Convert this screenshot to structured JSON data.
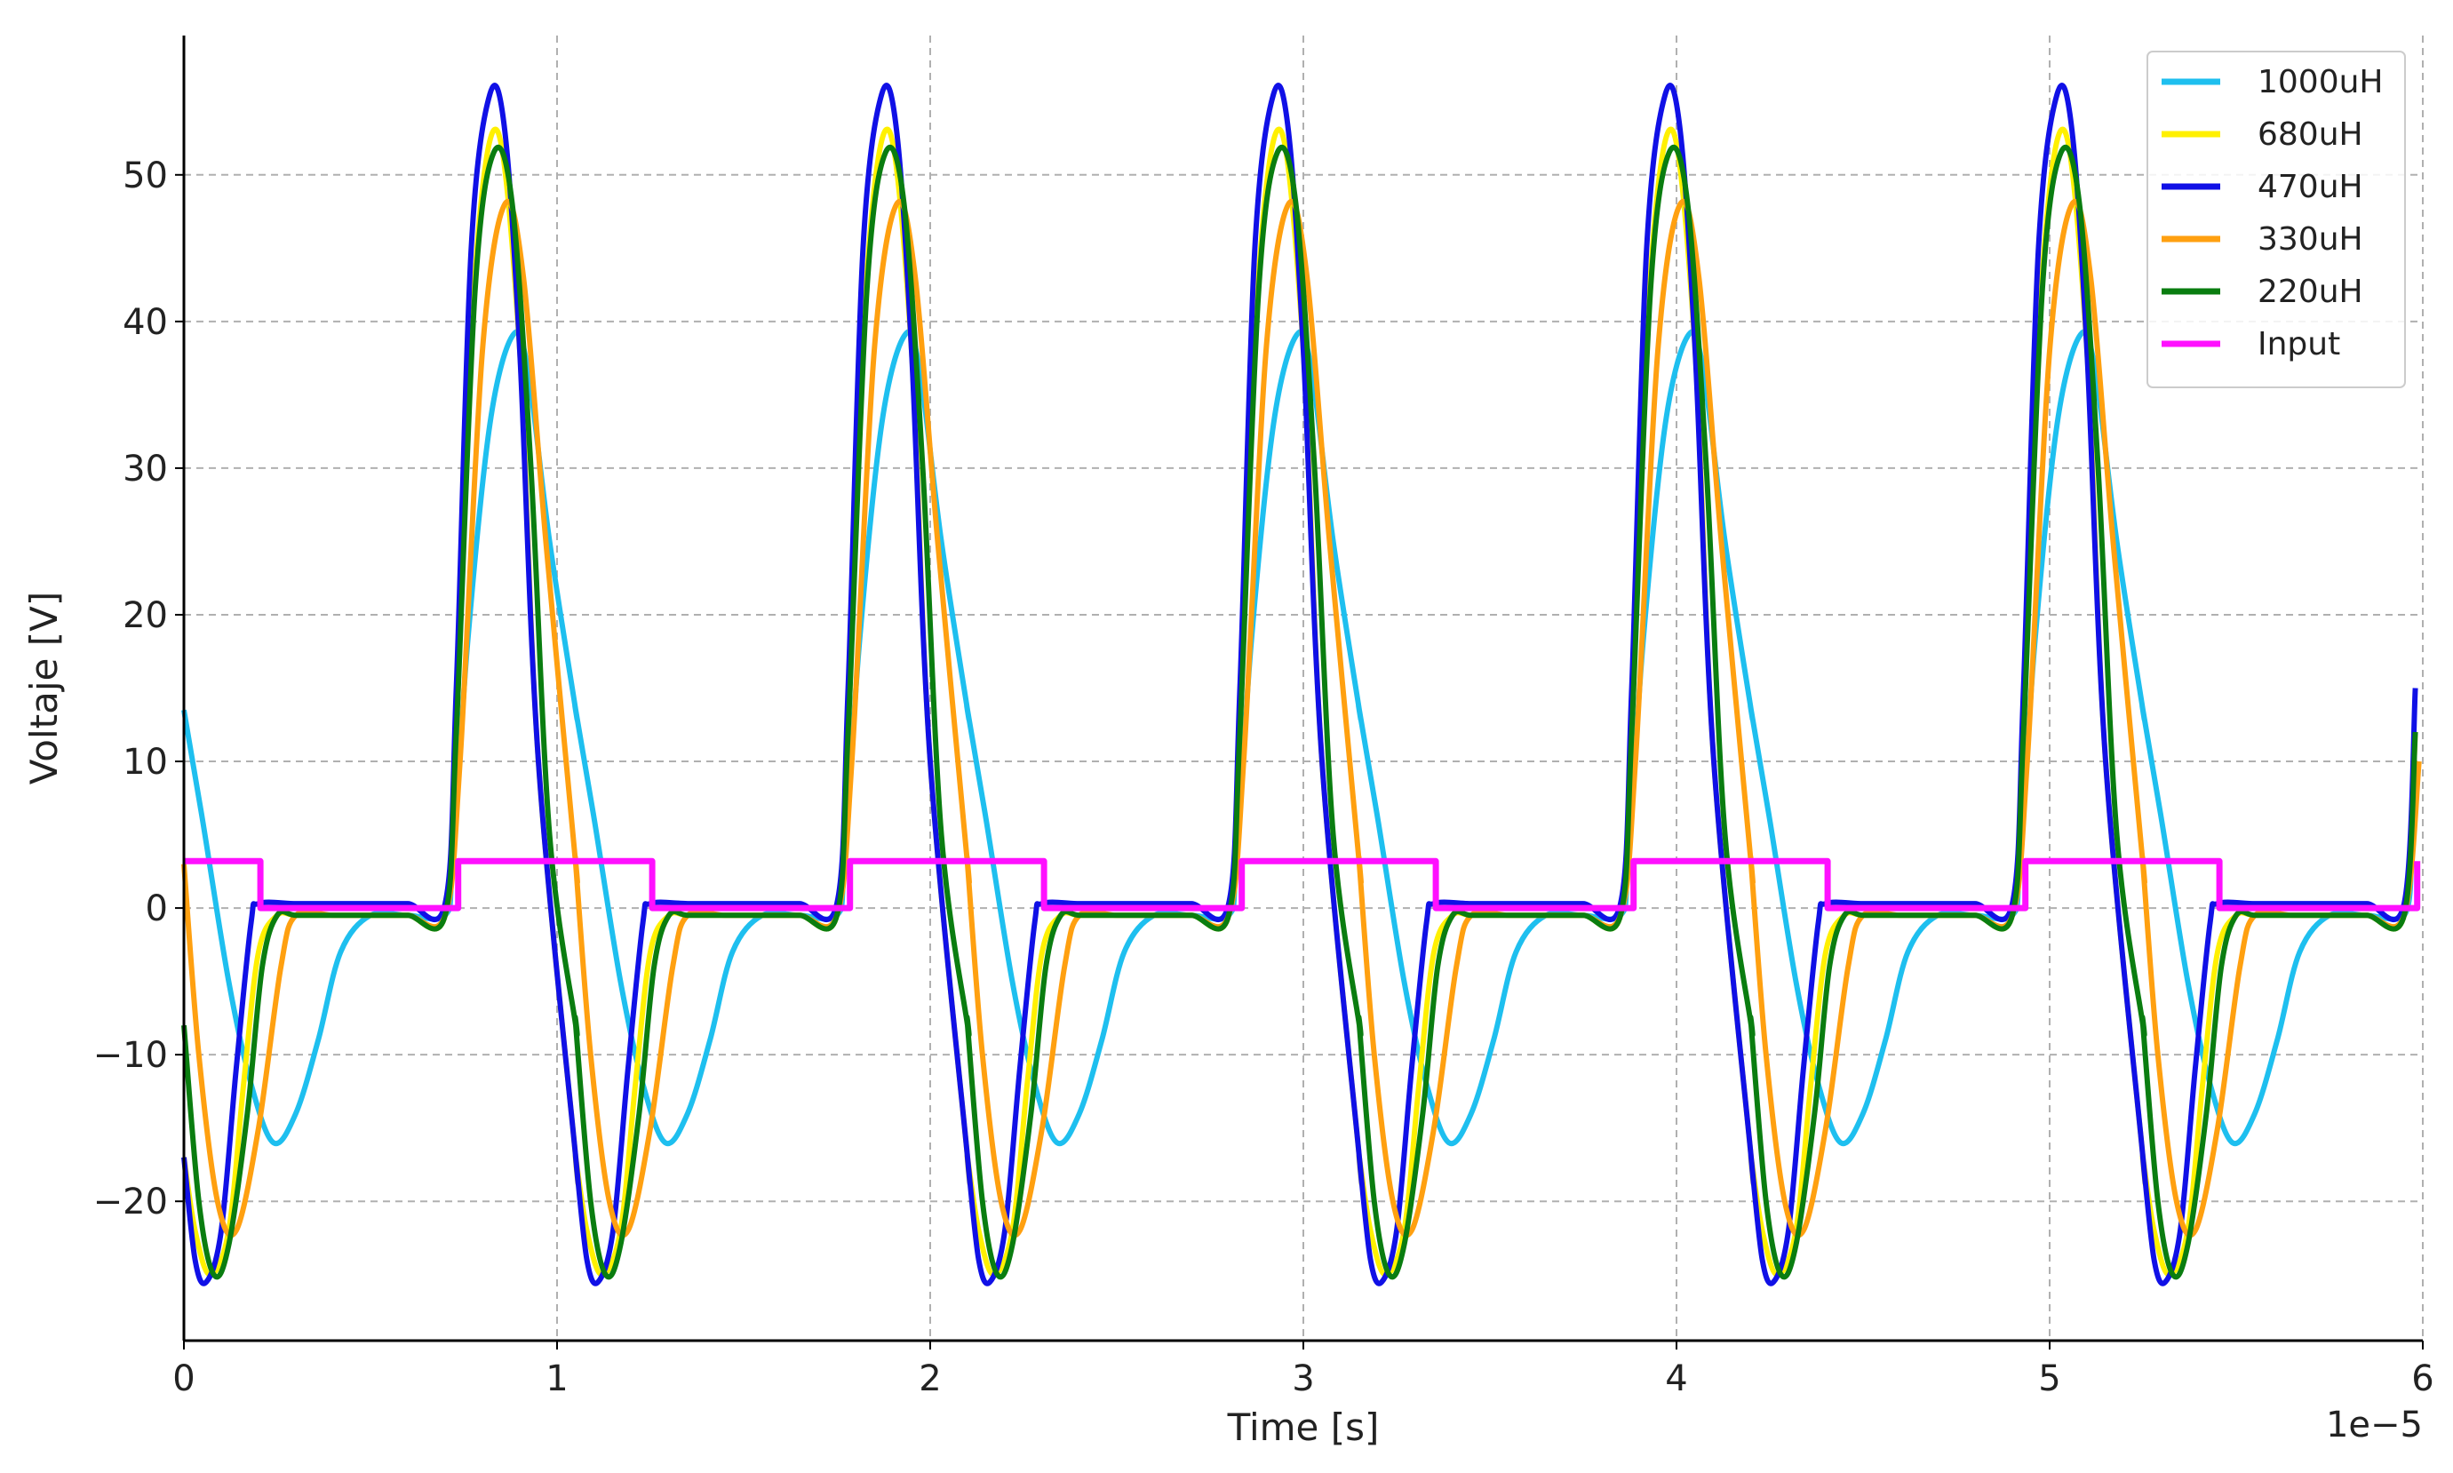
{
  "chart_data": {
    "type": "line",
    "title": "",
    "xlabel": "Time [s]",
    "ylabel": "Voltaje [V]",
    "x_multiplier_label": "1e−5",
    "xlim": [
      0,
      6
    ],
    "ylim": [
      -29.5,
      59.5
    ],
    "xticks": [
      0,
      1,
      2,
      3,
      4,
      5,
      6
    ],
    "xtick_labels": [
      "0",
      "1",
      "2",
      "3",
      "4",
      "5",
      "6"
    ],
    "yticks": [
      -20,
      -10,
      0,
      10,
      20,
      30,
      40,
      50
    ],
    "ytick_labels": [
      "−20",
      "−10",
      "0",
      "10",
      "20",
      "30",
      "40",
      "50"
    ],
    "grid": true,
    "legend_position": "top-right",
    "period": 1.05,
    "x_units": "1e-5 s",
    "series": [
      {
        "name": "1000uH",
        "color": "#1EBFEF",
        "x": [
          0.0,
          0.05,
          0.12,
          0.18,
          0.24,
          0.3,
          0.36,
          0.42,
          0.5,
          0.6,
          0.7,
          0.72,
          0.76,
          0.82,
          0.88,
          0.92,
          0.98,
          1.05
        ],
        "y": [
          13.5,
          6,
          -5,
          -12,
          -16,
          -14,
          -9,
          -3,
          -0.5,
          -0.5,
          -0.5,
          3,
          18,
          33,
          39,
          37,
          25,
          13.5
        ]
      },
      {
        "name": "680uH",
        "color": "#FFF000",
        "x": [
          0.0,
          0.03,
          0.07,
          0.12,
          0.16,
          0.2,
          0.25,
          0.3,
          0.4,
          0.5,
          0.6,
          0.7,
          0.73,
          0.78,
          0.84,
          0.9,
          0.95,
          1.05
        ],
        "y": [
          -17,
          -22,
          -25,
          -22,
          -12,
          -3,
          -0.5,
          -0.5,
          -0.5,
          -0.5,
          -0.5,
          -0.5,
          12,
          43,
          53,
          38,
          10,
          -17
        ]
      },
      {
        "name": "470uH",
        "color": "#1010E6",
        "x": [
          0.0,
          0.03,
          0.06,
          0.1,
          0.14,
          0.18,
          0.2,
          0.3,
          0.4,
          0.5,
          0.6,
          0.7,
          0.73,
          0.77,
          0.82,
          0.86,
          0.9,
          0.95,
          1.05
        ],
        "y": [
          -17,
          -24,
          -25.5,
          -22,
          -11,
          -1,
          0.3,
          0.3,
          0.3,
          0.3,
          0.3,
          0.3,
          15,
          45,
          55.5,
          53,
          38,
          10,
          -17
        ]
      },
      {
        "name": "330uH",
        "color": "#FFA010",
        "x": [
          0.0,
          0.04,
          0.09,
          0.14,
          0.2,
          0.26,
          0.3,
          0.4,
          0.5,
          0.6,
          0.7,
          0.74,
          0.8,
          0.86,
          0.91,
          0.97,
          1.05
        ],
        "y": [
          3,
          -10,
          -20,
          -22,
          -15,
          -4,
          -0.5,
          -0.5,
          -0.5,
          -0.5,
          -0.5,
          10,
          38,
          48,
          43,
          25,
          3
        ]
      },
      {
        "name": "220uH",
        "color": "#0A7D10",
        "x": [
          0.0,
          0.04,
          0.08,
          0.12,
          0.17,
          0.21,
          0.25,
          0.3,
          0.4,
          0.5,
          0.6,
          0.7,
          0.73,
          0.78,
          0.83,
          0.88,
          0.93,
          0.98,
          1.05
        ],
        "y": [
          -8,
          -20,
          -25,
          -23,
          -14,
          -4,
          -0.5,
          -0.5,
          -0.5,
          -0.5,
          -0.5,
          -0.5,
          12,
          42,
          51.5,
          48,
          30,
          5,
          -8
        ]
      },
      {
        "name": "Input",
        "color": "#FF10FF",
        "x": [
          0.0,
          0.205,
          0.205,
          0.735,
          0.735,
          1.05
        ],
        "y": [
          3.2,
          3.2,
          0,
          0,
          3.2,
          3.2
        ]
      }
    ]
  }
}
